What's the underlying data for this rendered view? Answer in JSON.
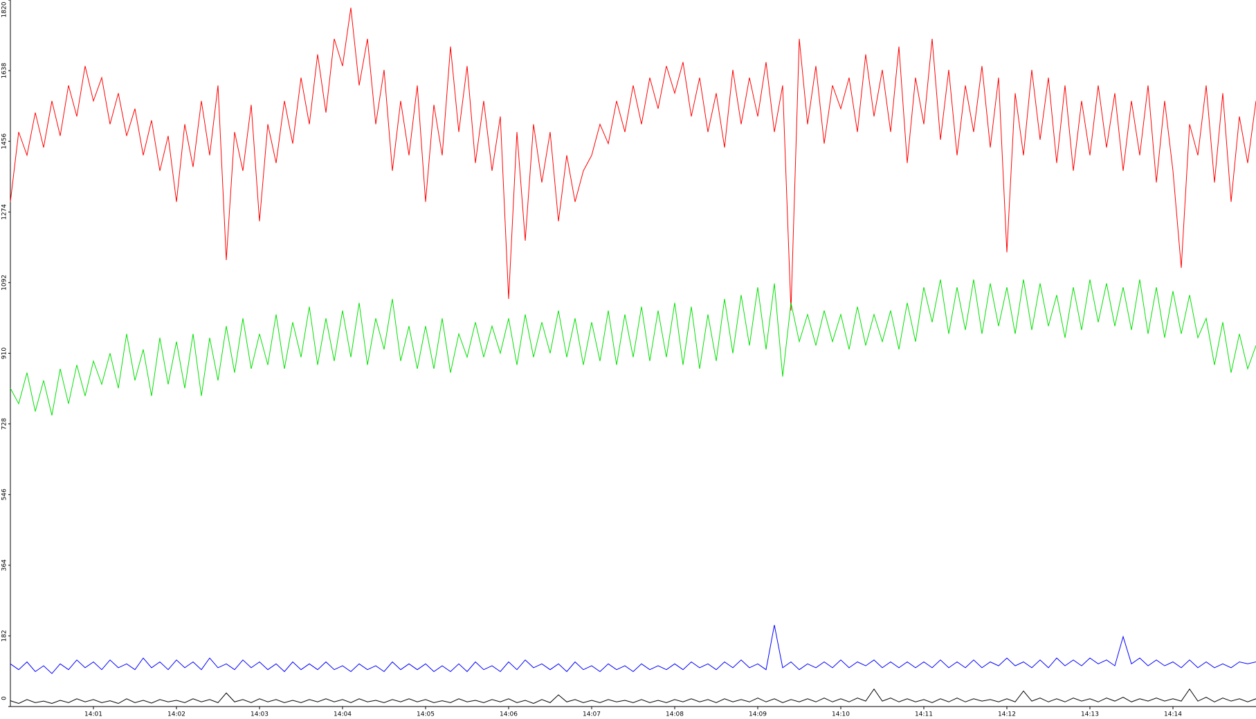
{
  "chart_data": {
    "type": "line",
    "x": [
      0,
      0.1,
      0.2,
      0.3,
      0.4,
      0.5,
      0.6,
      0.7,
      0.8,
      0.9,
      1,
      1.1,
      1.2,
      1.3,
      1.4,
      1.5,
      1.6,
      1.7,
      1.8,
      1.9,
      2,
      2.1,
      2.2,
      2.3,
      2.4,
      2.5,
      2.6,
      2.7,
      2.8,
      2.9,
      3,
      3.1,
      3.2,
      3.3,
      3.4,
      3.5,
      3.6,
      3.7,
      3.8,
      3.9,
      4,
      4.1,
      4.2,
      4.3,
      4.4,
      4.5,
      4.6,
      4.7,
      4.8,
      4.9,
      5,
      5.1,
      5.2,
      5.3,
      5.4,
      5.5,
      5.6,
      5.7,
      5.8,
      5.9,
      6,
      6.1,
      6.2,
      6.3,
      6.4,
      6.5,
      6.6,
      6.7,
      6.8,
      6.9,
      7,
      7.1,
      7.2,
      7.3,
      7.4,
      7.5,
      7.6,
      7.7,
      7.8,
      7.9,
      8,
      8.1,
      8.2,
      8.3,
      8.4,
      8.5,
      8.6,
      8.7,
      8.8,
      8.9,
      9,
      9.1,
      9.2,
      9.3,
      9.4,
      9.5,
      9.6,
      9.7,
      9.8,
      9.9,
      10,
      10.1,
      10.2,
      10.3,
      10.4,
      10.5,
      10.6,
      10.7,
      10.8,
      10.9,
      11,
      11.1,
      11.2,
      11.3,
      11.4,
      11.5,
      11.6,
      11.7,
      11.8,
      11.9,
      12,
      12.1,
      12.2,
      12.3,
      12.4,
      12.5,
      12.6,
      12.7,
      12.8,
      12.9,
      13,
      13.1,
      13.2,
      13.3,
      13.4,
      13.5,
      13.6,
      13.7,
      13.8,
      13.9,
      14,
      14.1,
      14.2,
      14.3,
      14.4,
      14.5,
      14.6,
      14.7,
      14.8,
      14.9,
      15
    ],
    "series": [
      {
        "color": "#ff0000",
        "values": [
          1300,
          1480,
          1420,
          1530,
          1440,
          1560,
          1470,
          1600,
          1520,
          1650,
          1560,
          1620,
          1500,
          1580,
          1470,
          1540,
          1420,
          1510,
          1380,
          1470,
          1300,
          1500,
          1390,
          1560,
          1420,
          1600,
          1150,
          1480,
          1380,
          1550,
          1250,
          1500,
          1400,
          1560,
          1450,
          1620,
          1500,
          1680,
          1530,
          1720,
          1650,
          1800,
          1600,
          1720,
          1500,
          1640,
          1380,
          1560,
          1420,
          1600,
          1300,
          1550,
          1420,
          1700,
          1480,
          1650,
          1400,
          1560,
          1380,
          1520,
          1050,
          1480,
          1200,
          1500,
          1350,
          1480,
          1250,
          1420,
          1300,
          1380,
          1420,
          1500,
          1450,
          1560,
          1480,
          1600,
          1500,
          1620,
          1540,
          1650,
          1580,
          1660,
          1520,
          1620,
          1480,
          1580,
          1440,
          1640,
          1500,
          1620,
          1520,
          1660,
          1480,
          1600,
          1020,
          1720,
          1500,
          1650,
          1450,
          1600,
          1540,
          1620,
          1480,
          1680,
          1520,
          1640,
          1480,
          1700,
          1400,
          1620,
          1500,
          1720,
          1460,
          1640,
          1420,
          1600,
          1480,
          1650,
          1440,
          1620,
          1170,
          1580,
          1420,
          1640,
          1460,
          1620,
          1400,
          1600,
          1380,
          1560,
          1420,
          1600,
          1440,
          1580,
          1380,
          1560,
          1420,
          1600,
          1350,
          1560,
          1380,
          1130,
          1500,
          1420,
          1600,
          1350,
          1580,
          1300,
          1520,
          1400,
          1560
        ]
      },
      {
        "color": "#00e000",
        "values": [
          820,
          780,
          860,
          760,
          840,
          750,
          870,
          780,
          880,
          800,
          890,
          830,
          910,
          820,
          960,
          840,
          920,
          800,
          950,
          830,
          940,
          820,
          960,
          800,
          950,
          840,
          980,
          860,
          1000,
          870,
          960,
          880,
          1010,
          870,
          990,
          900,
          1030,
          880,
          1000,
          890,
          1020,
          900,
          1040,
          880,
          1000,
          920,
          1050,
          890,
          980,
          870,
          980,
          870,
          1000,
          860,
          960,
          900,
          990,
          900,
          980,
          910,
          1000,
          880,
          1010,
          900,
          990,
          910,
          1020,
          900,
          1000,
          880,
          990,
          890,
          1020,
          880,
          1010,
          900,
          1030,
          890,
          1020,
          900,
          1040,
          880,
          1030,
          870,
          1010,
          890,
          1050,
          910,
          1060,
          930,
          1080,
          920,
          1090,
          850,
          1040,
          940,
          1010,
          930,
          1020,
          940,
          1010,
          920,
          1030,
          930,
          1010,
          940,
          1020,
          920,
          1040,
          940,
          1080,
          990,
          1100,
          960,
          1080,
          970,
          1100,
          960,
          1090,
          980,
          1080,
          960,
          1100,
          970,
          1090,
          980,
          1060,
          950,
          1080,
          970,
          1100,
          990,
          1090,
          980,
          1080,
          970,
          1100,
          960,
          1080,
          950,
          1070,
          960,
          1060,
          950,
          1000,
          880,
          990,
          860,
          960,
          870,
          930
        ]
      },
      {
        "color": "#0000ff",
        "values": [
          110,
          95,
          115,
          90,
          105,
          85,
          110,
          95,
          120,
          100,
          115,
          95,
          120,
          100,
          110,
          95,
          125,
          100,
          115,
          95,
          120,
          100,
          115,
          95,
          125,
          100,
          110,
          95,
          120,
          100,
          115,
          95,
          110,
          90,
          115,
          95,
          110,
          95,
          115,
          95,
          105,
          90,
          110,
          95,
          105,
          90,
          115,
          95,
          110,
          95,
          110,
          90,
          105,
          90,
          110,
          90,
          115,
          95,
          105,
          90,
          115,
          95,
          120,
          100,
          110,
          95,
          110,
          90,
          115,
          95,
          105,
          90,
          110,
          95,
          105,
          90,
          110,
          95,
          105,
          95,
          110,
          95,
          115,
          100,
          110,
          95,
          115,
          100,
          120,
          100,
          110,
          95,
          210,
          100,
          115,
          95,
          110,
          100,
          115,
          100,
          120,
          100,
          115,
          105,
          120,
          100,
          115,
          100,
          115,
          100,
          115,
          100,
          120,
          100,
          115,
          100,
          120,
          100,
          115,
          105,
          125,
          105,
          115,
          100,
          120,
          100,
          125,
          105,
          120,
          105,
          125,
          110,
          120,
          105,
          180,
          110,
          125,
          105,
          120,
          105,
          115,
          100,
          120,
          100,
          115,
          100,
          110,
          100,
          115,
          110,
          115
        ]
      },
      {
        "color": "#000000",
        "values": [
          15,
          8,
          18,
          10,
          14,
          8,
          16,
          10,
          20,
          12,
          18,
          10,
          15,
          8,
          20,
          10,
          16,
          9,
          18,
          12,
          16,
          10,
          20,
          12,
          18,
          10,
          35,
          12,
          18,
          10,
          20,
          12,
          18,
          10,
          16,
          10,
          18,
          12,
          20,
          12,
          18,
          10,
          20,
          12,
          16,
          10,
          18,
          12,
          20,
          12,
          18,
          10,
          15,
          10,
          20,
          12,
          16,
          10,
          18,
          12,
          20,
          10,
          16,
          8,
          18,
          10,
          30,
          12,
          18,
          10,
          16,
          10,
          18,
          12,
          16,
          10,
          18,
          10,
          16,
          10,
          18,
          12,
          20,
          12,
          18,
          10,
          20,
          12,
          18,
          12,
          22,
          12,
          20,
          10,
          18,
          12,
          20,
          12,
          22,
          12,
          20,
          12,
          22,
          14,
          45,
          14,
          22,
          12,
          20,
          12,
          18,
          10,
          20,
          12,
          22,
          12,
          20,
          14,
          18,
          12,
          20,
          12,
          40,
          14,
          22,
          12,
          20,
          12,
          22,
          14,
          20,
          12,
          22,
          14,
          24,
          12,
          20,
          14,
          22,
          14,
          20,
          14,
          45,
          14,
          24,
          12,
          22,
          14,
          20,
          12,
          20
        ]
      }
    ],
    "xlim": [
      0,
      15
    ],
    "xticks": [
      {
        "value": 1,
        "label": "14:01"
      },
      {
        "value": 2,
        "label": "14:02"
      },
      {
        "value": 3,
        "label": "14:03"
      },
      {
        "value": 4,
        "label": "14:04"
      },
      {
        "value": 5,
        "label": "14:05"
      },
      {
        "value": 6,
        "label": "14:06"
      },
      {
        "value": 7,
        "label": "14:07"
      },
      {
        "value": 8,
        "label": "14:08"
      },
      {
        "value": 9,
        "label": "14:09"
      },
      {
        "value": 10,
        "label": "14:10"
      },
      {
        "value": 11,
        "label": "14:11"
      },
      {
        "value": 12,
        "label": "14:12"
      },
      {
        "value": 13,
        "label": "14:13"
      },
      {
        "value": 14,
        "label": "14:14"
      }
    ],
    "ylim": [
      0,
      1820
    ],
    "yticks": [
      0,
      182,
      364,
      546,
      728,
      910,
      1092,
      1274,
      1456,
      1638,
      1820
    ],
    "grid": false
  }
}
